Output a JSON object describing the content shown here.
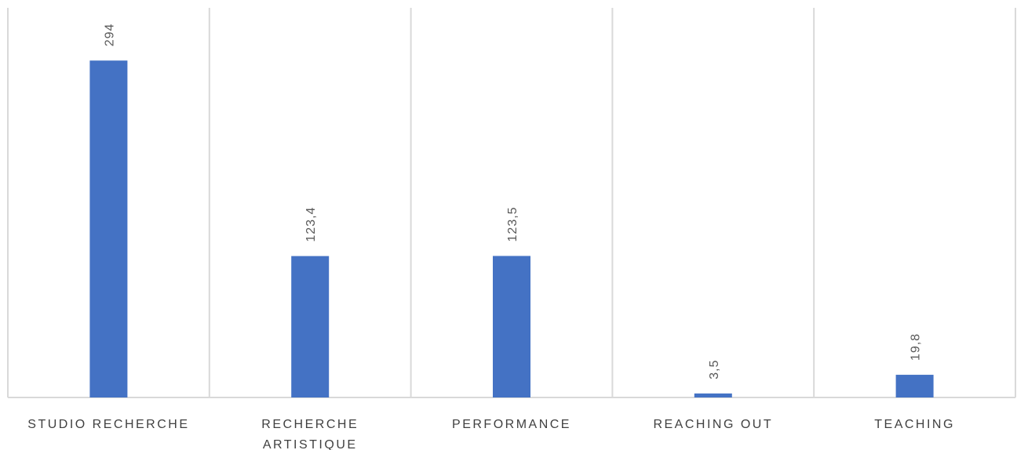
{
  "chart_data": {
    "type": "bar",
    "categories": [
      [
        "STUDIO RECHERCHE"
      ],
      [
        "RECHERCHE",
        "ARTISTIQUE"
      ],
      [
        "PERFORMANCE"
      ],
      [
        "REACHING OUT"
      ],
      [
        "TEACHING"
      ]
    ],
    "values": [
      294,
      123.4,
      123.5,
      3.5,
      19.8
    ],
    "data_labels": [
      "294",
      "123,4",
      "123,5",
      "3,5",
      "19,8"
    ],
    "ylim": [
      0,
      340
    ],
    "grid": "vertical-between-categories",
    "bar_color": "#4472c4"
  }
}
